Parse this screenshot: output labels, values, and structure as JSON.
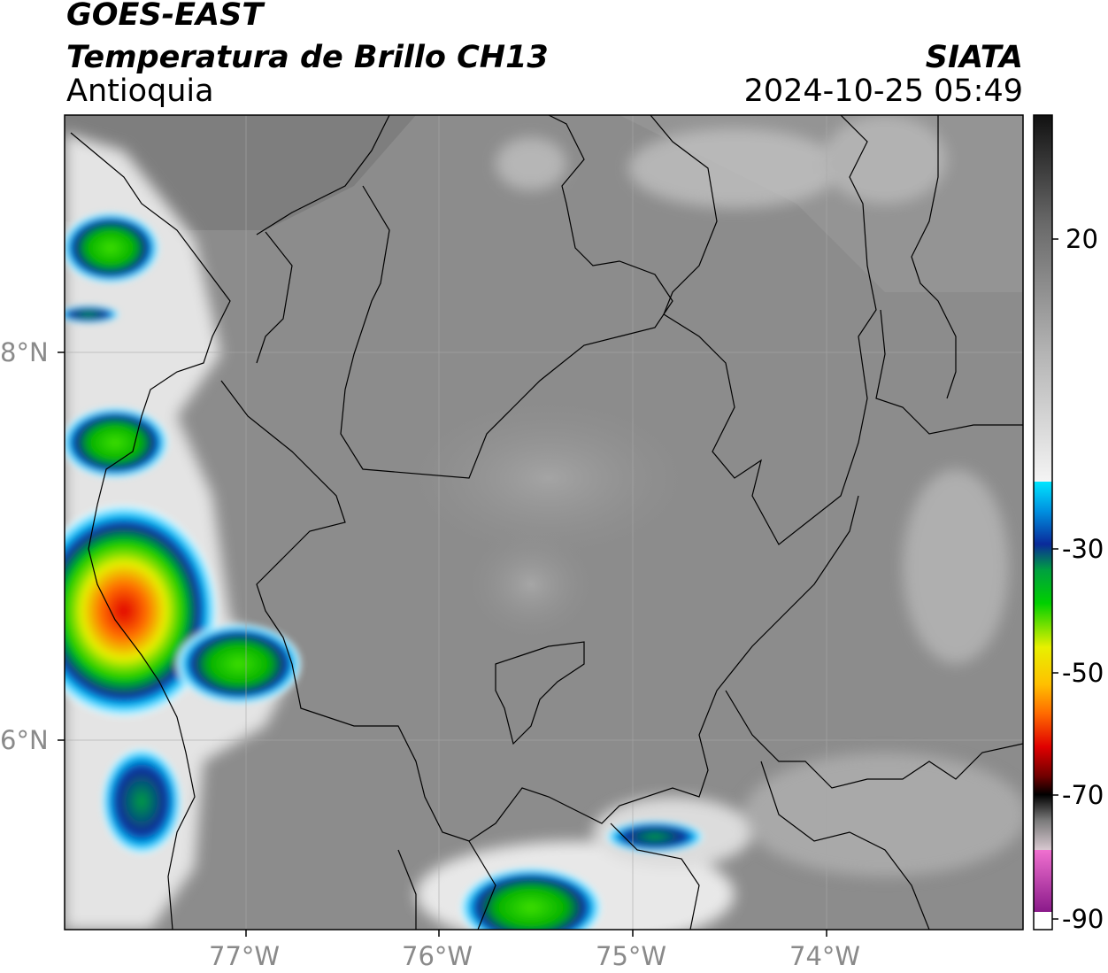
{
  "header": {
    "satellite": "GOES-EAST",
    "product": "Temperatura de Brillo CH13",
    "region": "Antioquia",
    "agency": "SIATA",
    "timestamp": "2024-10-25 05:49"
  },
  "map": {
    "lat_labels": [
      "8°N",
      "6°N"
    ],
    "lon_labels": [
      "77°W",
      "76°W",
      "75°W",
      "74°W"
    ]
  },
  "colorbar": {
    "tick_labels": [
      "20",
      "-30",
      "-50",
      "-70",
      "-90"
    ],
    "colors": {
      "gray_light": "#f0f0f0",
      "gray_dark": "#111111",
      "cyan": "#00e5ff",
      "blue": "#0a2a9a",
      "green": "#00c800",
      "yellow": "#f0f000",
      "orange": "#ff8c00",
      "red": "#e00000",
      "black": "#000000",
      "pink": "#e060c0",
      "purple": "#9a1a9a",
      "white": "#ffffff"
    }
  }
}
